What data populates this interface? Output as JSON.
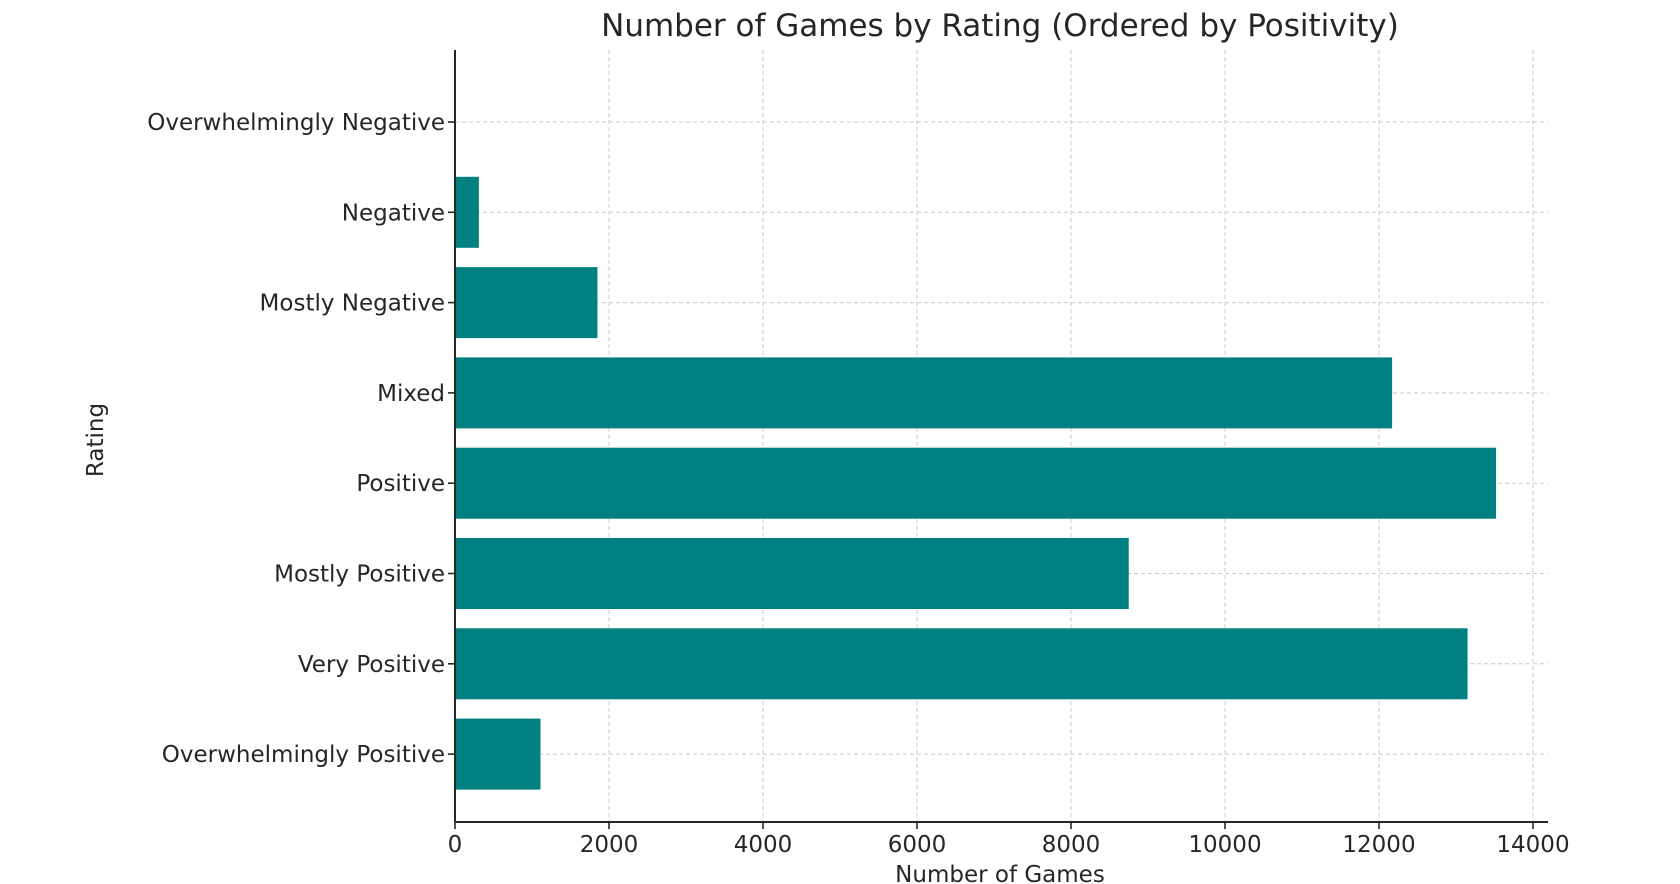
{
  "chart_data": {
    "type": "bar",
    "orientation": "horizontal",
    "title": "Number of Games by Rating (Ordered by Positivity)",
    "xlabel": "Number of Games",
    "ylabel": "Rating",
    "categories": [
      "Overwhelmingly Negative",
      "Negative",
      "Mostly Negative",
      "Mixed",
      "Positive",
      "Mostly Positive",
      "Very Positive",
      "Overwhelmingly Positive"
    ],
    "values": [
      8,
      310,
      1850,
      12170,
      13520,
      8750,
      13150,
      1110
    ],
    "xlim": [
      0,
      14000
    ],
    "xticks": [
      "0",
      "2000",
      "4000",
      "6000",
      "8000",
      "10000",
      "12000",
      "14000"
    ],
    "bar_color": "#008080",
    "grid": true,
    "legend": "none"
  }
}
